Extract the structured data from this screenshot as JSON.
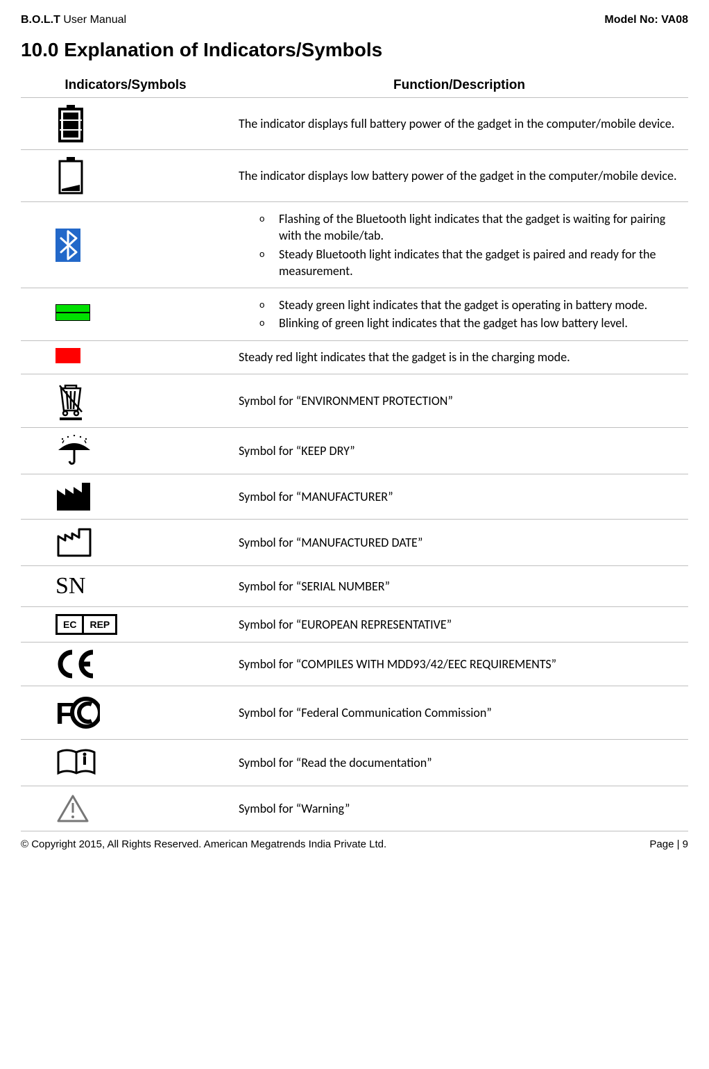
{
  "header": {
    "left_bold": "B.O.L.T",
    "left_rest": " User Manual",
    "right": "Model No: VA08"
  },
  "title": "10.0 Explanation of Indicators/Symbols",
  "table": {
    "col1_header": "Indicators/Symbols",
    "col2_header": "Function/Description",
    "rows": [
      {
        "icon": "battery-full",
        "desc_type": "text",
        "text": "The indicator displays full battery power of the gadget in the computer/mobile device."
      },
      {
        "icon": "battery-low",
        "desc_type": "text",
        "text": "The indicator displays low battery power of the gadget in the computer/mobile device."
      },
      {
        "icon": "bluetooth",
        "desc_type": "bullets",
        "bullets": [
          "Flashing of the Bluetooth light indicates that the gadget is waiting for pairing with the mobile/tab.",
          "Steady Bluetooth light indicates that the gadget is paired and ready for the measurement."
        ]
      },
      {
        "icon": "green-led",
        "desc_type": "bullets",
        "bullets": [
          "Steady green light indicates that the gadget is operating in battery mode.",
          "Blinking of green light indicates that the gadget has low battery level."
        ]
      },
      {
        "icon": "red-led",
        "desc_type": "text",
        "text": "Steady red light indicates that the gadget is in the charging mode."
      },
      {
        "icon": "weee",
        "desc_type": "text",
        "text": "Symbol for “ENVIRONMENT PROTECTION”"
      },
      {
        "icon": "keep-dry",
        "desc_type": "text",
        "text": "Symbol for “KEEP DRY”"
      },
      {
        "icon": "manufacturer",
        "desc_type": "text",
        "text": "Symbol for “MANUFACTURER”"
      },
      {
        "icon": "mfg-date",
        "desc_type": "text",
        "text": "Symbol for “MANUFACTURED DATE”"
      },
      {
        "icon": "sn",
        "desc_type": "text",
        "text": "Symbol for “SERIAL NUMBER”"
      },
      {
        "icon": "ec-rep",
        "ec_left": "EC",
        "ec_right": "REP",
        "desc_type": "text",
        "text": "Symbol for “EUROPEAN REPRESENTATIVE”"
      },
      {
        "icon": "ce",
        "desc_type": "text",
        "text": "Symbol for “COMPILES WITH MDD93/42/EEC REQUIREMENTS”"
      },
      {
        "icon": "fcc",
        "desc_type": "text",
        "text": "Symbol for “Federal Communication Commission”"
      },
      {
        "icon": "read-doc",
        "desc_type": "text",
        "text": "Symbol for “Read the documentation”"
      },
      {
        "icon": "warning",
        "desc_type": "text",
        "text": "Symbol for “Warning”"
      }
    ]
  },
  "footer": {
    "left": "© Copyright 2015, All Rights Reserved. American Megatrends India Private Ltd.",
    "right": "Page | 9"
  },
  "colors": {
    "bluetooth_bg": "#2268c9",
    "green_led": "#00e000",
    "red_led": "#ff0000",
    "border_gray": "#bfbfbf"
  }
}
